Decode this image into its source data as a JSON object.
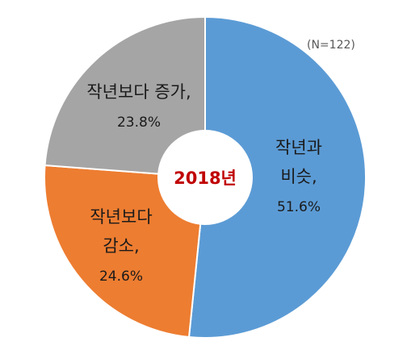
{
  "chart_data": {
    "type": "pie",
    "subtype": "donut",
    "note": "(N=122)",
    "center_label": "2018년",
    "slices": [
      {
        "label_lines": [
          "작년과",
          "비슷,"
        ],
        "percent_text": "51.6%",
        "value": 51.6,
        "color": "#5b9bd5"
      },
      {
        "label_lines": [
          "작년보다",
          "감소,"
        ],
        "percent_text": "24.6%",
        "value": 24.6,
        "color": "#ed7d31"
      },
      {
        "label_lines": [
          "작년보다 증가,"
        ],
        "percent_text": "23.8%",
        "value": 23.8,
        "color": "#a5a5a5"
      }
    ],
    "colors": {
      "center_text": "#c00000",
      "label_text": "#1a1a1a",
      "separator": "#ffffff"
    }
  }
}
